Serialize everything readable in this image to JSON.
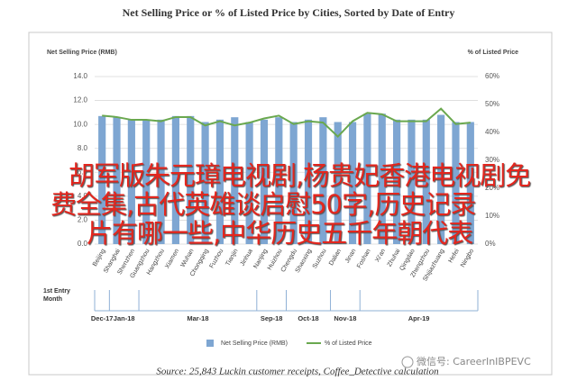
{
  "chart_data": {
    "type": "bar",
    "title": "Net Selling Price or % of Listed Price by Cities, Sorted by Date of Entry",
    "y_label": "Net Selling Price (RMB)",
    "y2_label": "% of Listed Price",
    "categories": [
      "Beijing",
      "Shanghai",
      "Shenzhen",
      "Guangzhou",
      "Hangzhou",
      "Xiamen",
      "Wuhan",
      "Chongqing",
      "Fuzhou",
      "Tianjin",
      "Jinhua",
      "Nanjing",
      "Huizhou",
      "Chengdu",
      "Shaoxing",
      "Suzhou",
      "Dalian",
      "Jinan",
      "Foshan",
      "Xi'an",
      "Zhuhai",
      "Qingdao",
      "Zhengzhou",
      "Shijiazhuang",
      "Hefei",
      "Ningbo"
    ],
    "series": [
      {
        "name": "Net Selling Price (RMB)",
        "type": "bar",
        "color": "#7ea6d2",
        "values": [
          10.7,
          10.6,
          10.4,
          10.4,
          10.4,
          10.7,
          10.7,
          10.2,
          10.4,
          10.6,
          10.2,
          10.4,
          10.6,
          10.2,
          10.4,
          10.6,
          10.2,
          10.2,
          10.9,
          10.9,
          10.4,
          10.4,
          10.4,
          10.8,
          10.2,
          10.2
        ]
      },
      {
        "name": "% of Listed Price",
        "type": "line",
        "axis": "y2",
        "color": "#6aa84f",
        "values": [
          46,
          45.5,
          44.5,
          44.5,
          44,
          45.5,
          45.5,
          42.5,
          44,
          42.5,
          43.5,
          45,
          46,
          43,
          44,
          43.5,
          38.5,
          44,
          47,
          46.5,
          44,
          44,
          44,
          48.5,
          43,
          43.5
        ]
      }
    ],
    "ylim": [
      0,
      14
    ],
    "yticks": [
      {
        "value": 0,
        "label": "0.0"
      },
      {
        "value": 2,
        "label": "2.0"
      },
      {
        "value": 4,
        "label": "4.0"
      },
      {
        "value": 6,
        "label": "6.0"
      },
      {
        "value": 8,
        "label": "8.0"
      },
      {
        "value": 10,
        "label": "10.0"
      },
      {
        "value": 12,
        "label": "12.0"
      },
      {
        "value": 14,
        "label": "14.0"
      }
    ],
    "y2lim": [
      0,
      60
    ],
    "y2ticks": [
      {
        "value": 0,
        "label": "0%"
      },
      {
        "value": 10,
        "label": "10%"
      },
      {
        "value": 20,
        "label": "20%"
      },
      {
        "value": 30,
        "label": "30%"
      },
      {
        "value": 40,
        "label": "40%"
      },
      {
        "value": 50,
        "label": "50%"
      },
      {
        "value": 60,
        "label": "60%"
      }
    ],
    "grid": true,
    "entry_label": [
      "1st Entry",
      "Month"
    ],
    "entry_months": [
      "Dec-17",
      "Jan-18",
      "Jan-18",
      "Mar-18",
      "Mar-18",
      "Mar-18",
      "Mar-18",
      "Mar-18",
      "Mar-18",
      "Mar-18",
      "Mar-18",
      "Sep-18",
      "Sep-18",
      "Oct-18",
      "Oct-18",
      "Oct-18",
      "Nov-18",
      "Nov-18",
      "Apr-19",
      "Apr-19",
      "Apr-19",
      "Apr-19",
      "Apr-19",
      "Apr-19",
      "Apr-19",
      "Apr-19"
    ],
    "source": "Source: 25,843 Luckin customer receipts, Coffee_Detective calculation"
  },
  "overlay": [
    "胡军版朱元璋电视剧,杨贵妃香港电视剧免",
    "费全集,古代英雄谈启慰50字,历史记录",
    "片有哪一些,中华历史五千年朝代表"
  ],
  "watermark": "微信号: CareerInIBPEVC"
}
